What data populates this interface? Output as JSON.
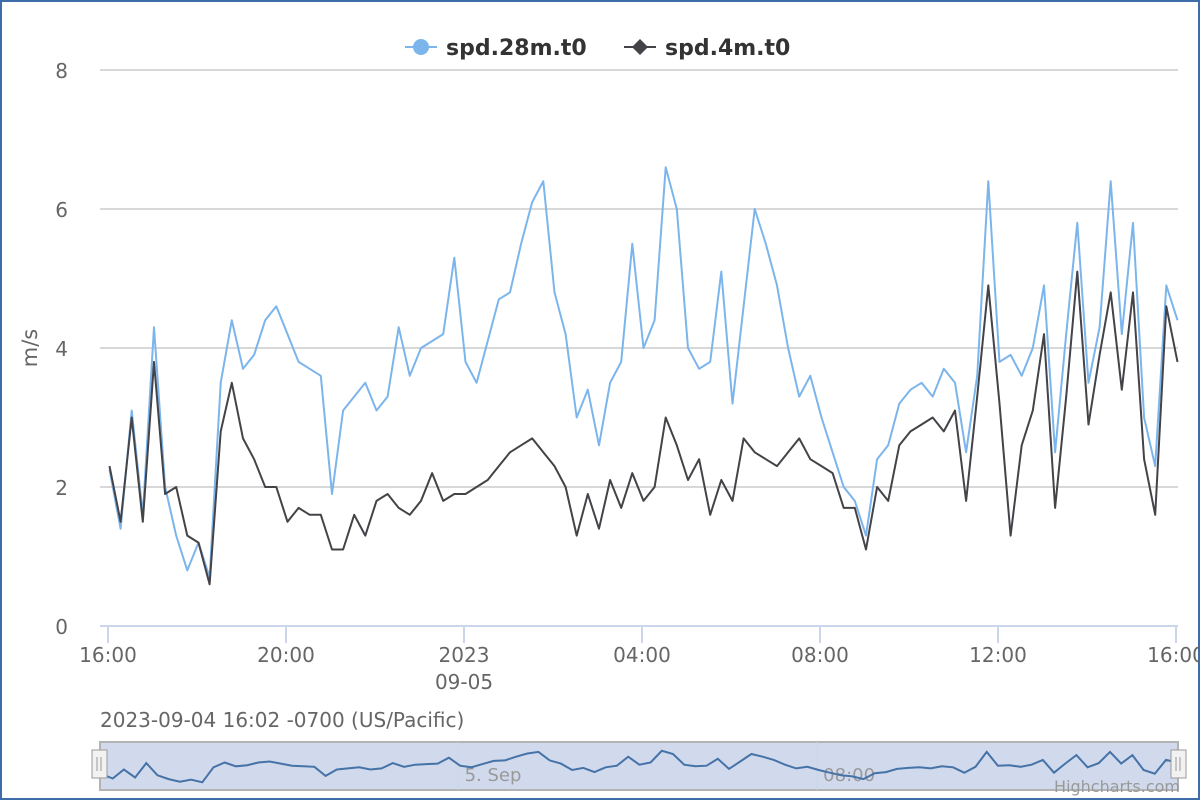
{
  "range_label": "2023-09-04 16:02 -0700 (US/Pacific)",
  "credits": "Highcharts.com",
  "navigator": {
    "labels": [
      "5. Sep",
      "08:00"
    ],
    "label_hours": [
      8,
      16
    ]
  },
  "chart_data": {
    "type": "line",
    "title": "",
    "xlabel": "",
    "ylabel": "m/s",
    "ylim": [
      0,
      8
    ],
    "yticks": [
      0,
      2,
      4,
      6,
      8
    ],
    "grid": true,
    "legend_position": "top-center",
    "x_start": "2023-09-04 16:02",
    "x_interval_minutes": 15,
    "x_start_hours_from_first_tick": 0.033,
    "x_range_hours": [
      0,
      24.05
    ],
    "xticks": [
      {
        "hours": 0,
        "label": "16:00"
      },
      {
        "hours": 4,
        "label": "20:00"
      },
      {
        "hours": 8,
        "label": "2023",
        "sublabel": "09-05"
      },
      {
        "hours": 12,
        "label": "04:00"
      },
      {
        "hours": 16,
        "label": "08:00"
      },
      {
        "hours": 20,
        "label": "12:00"
      },
      {
        "hours": 24,
        "label": "16:00"
      }
    ],
    "series": [
      {
        "name": "spd.28m.t0",
        "color": "#7cb5ec",
        "marker": "circle",
        "values": [
          2.25,
          1.4,
          3.1,
          1.6,
          4.3,
          2.0,
          1.3,
          0.8,
          1.2,
          0.7,
          3.5,
          4.4,
          3.7,
          3.9,
          4.4,
          4.6,
          4.2,
          3.8,
          3.7,
          3.6,
          1.9,
          3.1,
          3.3,
          3.5,
          3.1,
          3.3,
          4.3,
          3.6,
          4.0,
          4.1,
          4.2,
          5.3,
          3.8,
          3.5,
          4.1,
          4.7,
          4.8,
          5.5,
          6.1,
          6.4,
          4.8,
          4.2,
          3.0,
          3.4,
          2.6,
          3.5,
          3.8,
          5.5,
          4.0,
          4.4,
          6.6,
          6.0,
          4.0,
          3.7,
          3.8,
          5.1,
          3.2,
          4.6,
          6.0,
          5.5,
          4.9,
          4.0,
          3.3,
          3.6,
          3.0,
          2.5,
          2.0,
          1.8,
          1.3,
          2.4,
          2.6,
          3.2,
          3.4,
          3.5,
          3.3,
          3.7,
          3.5,
          2.5,
          3.6,
          6.4,
          3.8,
          3.9,
          3.6,
          4.0,
          4.9,
          2.5,
          4.2,
          5.8,
          3.5,
          4.3,
          6.4,
          4.2,
          5.8,
          3.0,
          2.3,
          4.9,
          4.4
        ]
      },
      {
        "name": "spd.4m.t0",
        "color": "#434348",
        "marker": "diamond",
        "values": [
          2.3,
          1.5,
          3.0,
          1.5,
          3.8,
          1.9,
          2.0,
          1.3,
          1.2,
          0.6,
          2.8,
          3.5,
          2.7,
          2.4,
          2.0,
          2.0,
          1.5,
          1.7,
          1.6,
          1.6,
          1.1,
          1.1,
          1.6,
          1.3,
          1.8,
          1.9,
          1.7,
          1.6,
          1.8,
          2.2,
          1.8,
          1.9,
          1.9,
          2.0,
          2.1,
          2.3,
          2.5,
          2.6,
          2.7,
          2.5,
          2.3,
          2.0,
          1.3,
          1.9,
          1.4,
          2.1,
          1.7,
          2.2,
          1.8,
          2.0,
          3.0,
          2.6,
          2.1,
          2.4,
          1.6,
          2.1,
          1.8,
          2.7,
          2.5,
          2.4,
          2.3,
          2.5,
          2.7,
          2.4,
          2.3,
          2.2,
          1.7,
          1.7,
          1.1,
          2.0,
          1.8,
          2.6,
          2.8,
          2.9,
          3.0,
          2.8,
          3.1,
          1.8,
          3.3,
          4.9,
          3.2,
          1.3,
          2.6,
          3.1,
          4.2,
          1.7,
          3.3,
          5.1,
          2.9,
          3.9,
          4.8,
          3.4,
          4.8,
          2.4,
          1.6,
          4.6,
          3.8
        ]
      }
    ]
  }
}
